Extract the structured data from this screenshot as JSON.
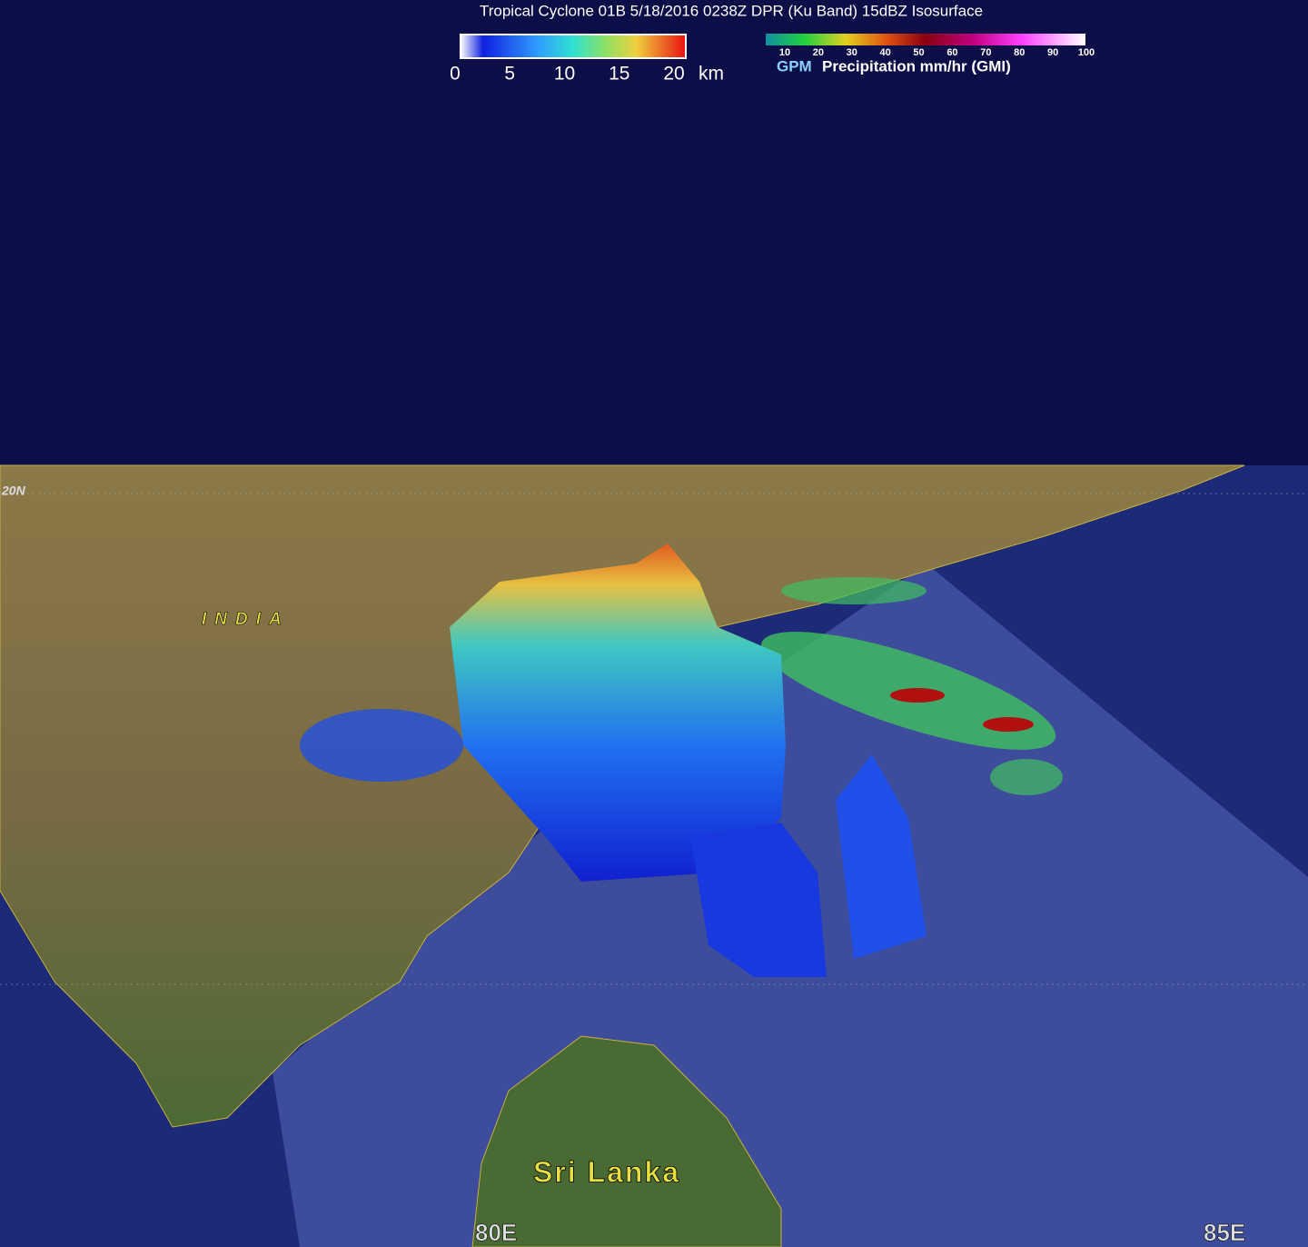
{
  "header": {
    "title": "Tropical Cyclone 01B 5/18/2016 0238Z DPR (Ku Band) 15dBZ Isosurface"
  },
  "height_legend": {
    "ticks": [
      0,
      5,
      10,
      15,
      20
    ],
    "unit": "km"
  },
  "precip_legend": {
    "ticks": [
      10,
      20,
      30,
      40,
      50,
      60,
      70,
      80,
      90,
      100
    ],
    "source": "GPM",
    "label": "Precipitation mm/hr (GMI)"
  },
  "map_labels": {
    "latitude": "20N",
    "country": "INDIA",
    "island": "Sri Lanka",
    "lon_west": "80E",
    "lon_east": "85E"
  }
}
